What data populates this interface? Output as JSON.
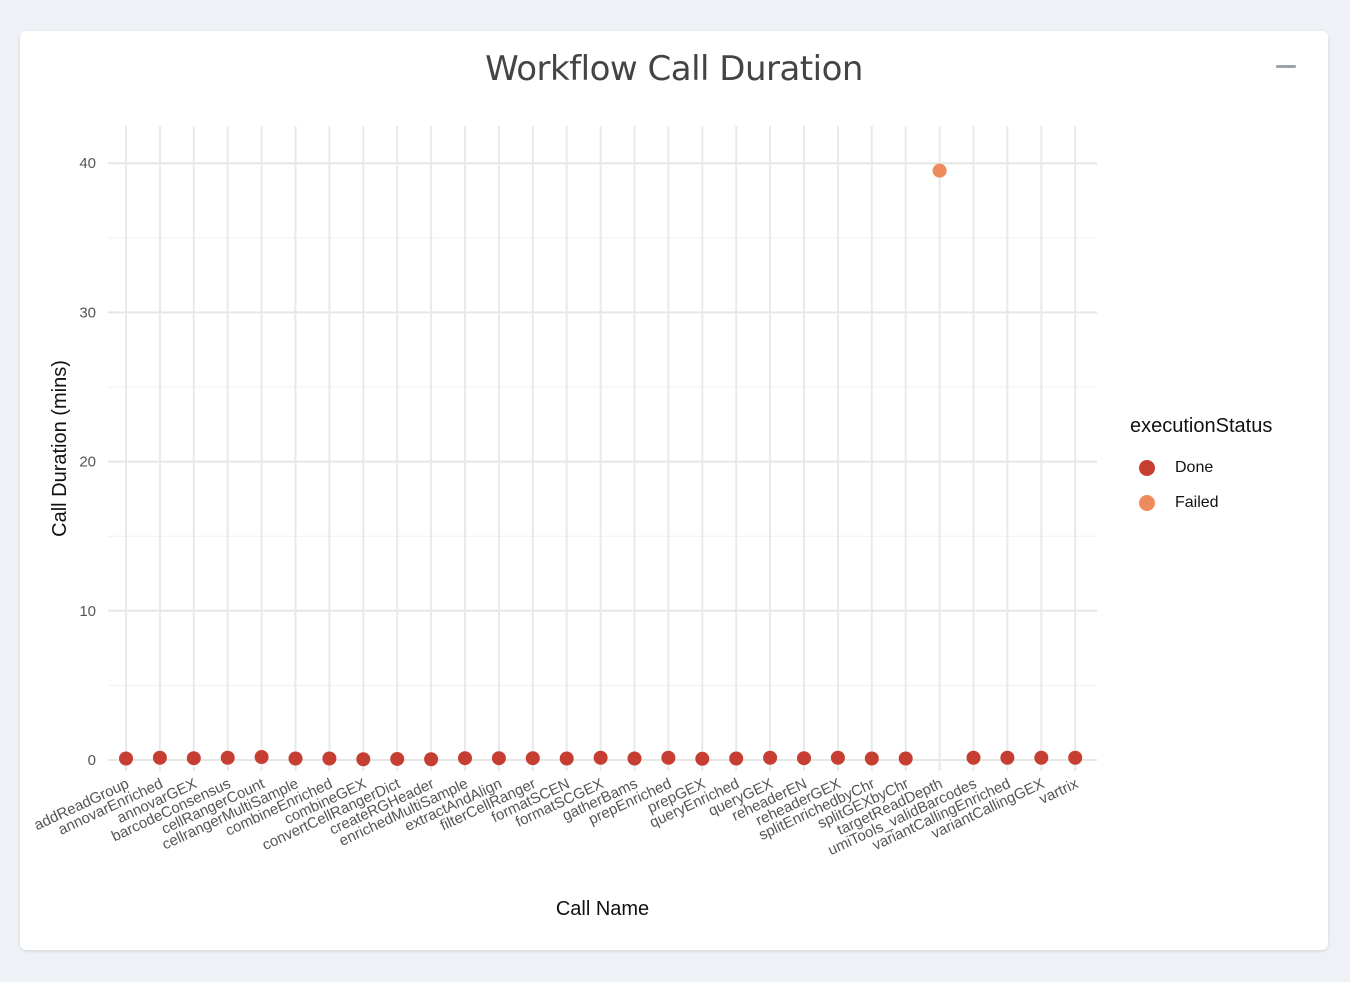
{
  "card": {
    "title": "Workflow Call Duration",
    "minimize_label": "−"
  },
  "legend": {
    "title": "executionStatus",
    "items": [
      {
        "label": "Done",
        "color": "#c63d31"
      },
      {
        "label": "Failed",
        "color": "#ef8a5c"
      }
    ]
  },
  "chart_data": {
    "type": "scatter",
    "xlabel": "Call Name",
    "ylabel": "Call Duration (mins)",
    "ylim": [
      -1,
      41.5
    ],
    "yticks": [
      0,
      10,
      20,
      30,
      40
    ],
    "grid": true,
    "legend_position": "right",
    "categories": [
      "addReadGroup",
      "annovarEnriched",
      "annovarGEX",
      "barcodeConsensus",
      "cellRangerCount",
      "cellrangerMultiSample",
      "combineEnriched",
      "combineGEX",
      "convertCellRangerDict",
      "createRGHeader",
      "enrichedMultiSample",
      "extractAndAlign",
      "filterCellRanger",
      "formatSCEN",
      "formatSCGEX",
      "gatherBams",
      "prepEnriched",
      "prepGEX",
      "queryEnriched",
      "queryGEX",
      "reheaderEN",
      "reheaderGEX",
      "splitEnrichedbyChr",
      "splitGEXbyChr",
      "targetReadDepth",
      "umiTools_validBarcodes",
      "variantCallingEnriched",
      "variantCallingGEX",
      "vartrix"
    ],
    "series": [
      {
        "name": "Done",
        "color": "#c63d31",
        "points": [
          {
            "x": "addReadGroup",
            "y": 0.1
          },
          {
            "x": "annovarEnriched",
            "y": 0.15
          },
          {
            "x": "annovarGEX",
            "y": 0.12
          },
          {
            "x": "barcodeConsensus",
            "y": 0.15
          },
          {
            "x": "cellRangerCount",
            "y": 0.2
          },
          {
            "x": "cellrangerMultiSample",
            "y": 0.1
          },
          {
            "x": "combineEnriched",
            "y": 0.1
          },
          {
            "x": "combineGEX",
            "y": 0.05
          },
          {
            "x": "convertCellRangerDict",
            "y": 0.07
          },
          {
            "x": "createRGHeader",
            "y": 0.05
          },
          {
            "x": "enrichedMultiSample",
            "y": 0.12
          },
          {
            "x": "extractAndAlign",
            "y": 0.12
          },
          {
            "x": "filterCellRanger",
            "y": 0.12
          },
          {
            "x": "formatSCEN",
            "y": 0.1
          },
          {
            "x": "formatSCGEX",
            "y": 0.15
          },
          {
            "x": "gatherBams",
            "y": 0.1
          },
          {
            "x": "prepEnriched",
            "y": 0.15
          },
          {
            "x": "prepGEX",
            "y": 0.08
          },
          {
            "x": "queryEnriched",
            "y": 0.1
          },
          {
            "x": "queryGEX",
            "y": 0.15
          },
          {
            "x": "reheaderEN",
            "y": 0.12
          },
          {
            "x": "reheaderGEX",
            "y": 0.15
          },
          {
            "x": "splitEnrichedbyChr",
            "y": 0.1
          },
          {
            "x": "splitGEXbyChr",
            "y": 0.1
          },
          {
            "x": "umiTools_validBarcodes",
            "y": 0.15
          },
          {
            "x": "variantCallingEnriched",
            "y": 0.15
          },
          {
            "x": "variantCallingGEX",
            "y": 0.15
          },
          {
            "x": "vartrix",
            "y": 0.15
          }
        ]
      },
      {
        "name": "Failed",
        "color": "#ef8a5c",
        "points": [
          {
            "x": "targetReadDepth",
            "y": 39.5
          }
        ]
      }
    ]
  }
}
